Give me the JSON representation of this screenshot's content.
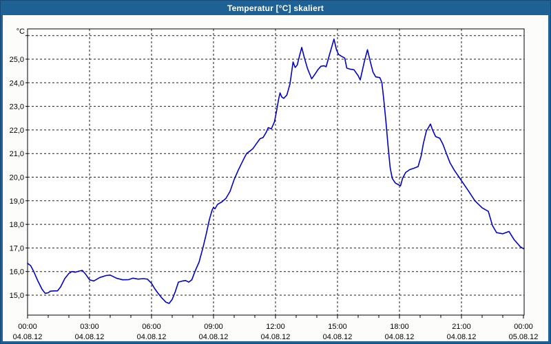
{
  "window": {
    "title": "Temperatur [°C] skaliert",
    "titlebar_color": "#1D6195",
    "border_color": "#17497A",
    "body_color": "#FCFDFB"
  },
  "chart_data": {
    "type": "line",
    "title": "Temperatur [°C] skaliert",
    "y_unit_label": "°C",
    "grid": "dashed",
    "legend": "none",
    "line_color": "#0000C8",
    "grid_color": "#1A1A1A",
    "frame_color": "#000000",
    "plot_bg": "#FFFFFF",
    "xlim_hours": [
      0,
      24
    ],
    "ylim": [
      14.15,
      26.3
    ],
    "y_ticks": [
      {
        "v": 15,
        "label": "15,0"
      },
      {
        "v": 16,
        "label": "16,0"
      },
      {
        "v": 17,
        "label": "17,0"
      },
      {
        "v": 18,
        "label": "18,0"
      },
      {
        "v": 19,
        "label": "19,0"
      },
      {
        "v": 20,
        "label": "20,0"
      },
      {
        "v": 21,
        "label": "21,0"
      },
      {
        "v": 22,
        "label": "22,0"
      },
      {
        "v": 23,
        "label": "23,0"
      },
      {
        "v": 24,
        "label": "24,0"
      },
      {
        "v": 25,
        "label": "25,0"
      },
      {
        "v": 26,
        "label": ""
      }
    ],
    "x_ticks": [
      {
        "h": 0,
        "time": "00:00",
        "date": "04.08.12"
      },
      {
        "h": 3,
        "time": "03:00",
        "date": "04.08.12"
      },
      {
        "h": 6,
        "time": "06:00",
        "date": "04.08.12"
      },
      {
        "h": 9,
        "time": "09:00",
        "date": "04.08.12"
      },
      {
        "h": 12,
        "time": "12:00",
        "date": "04.08.12"
      },
      {
        "h": 15,
        "time": "15:00",
        "date": "04.08.12"
      },
      {
        "h": 18,
        "time": "18:00",
        "date": "04.08.12"
      },
      {
        "h": 21,
        "time": "21:00",
        "date": "04.08.12"
      },
      {
        "h": 24,
        "time": "00:00",
        "date": "05.08.12"
      }
    ],
    "series": [
      {
        "name": "Temperatur",
        "points": [
          [
            0.0,
            16.35
          ],
          [
            0.15,
            16.25
          ],
          [
            0.3,
            16.0
          ],
          [
            0.5,
            15.6
          ],
          [
            0.7,
            15.25
          ],
          [
            0.85,
            15.08
          ],
          [
            1.0,
            15.1
          ],
          [
            1.1,
            15.17
          ],
          [
            1.3,
            15.18
          ],
          [
            1.45,
            15.18
          ],
          [
            1.6,
            15.35
          ],
          [
            1.8,
            15.7
          ],
          [
            2.0,
            15.92
          ],
          [
            2.15,
            16.0
          ],
          [
            2.3,
            15.97
          ],
          [
            2.5,
            16.02
          ],
          [
            2.65,
            16.05
          ],
          [
            2.8,
            15.9
          ],
          [
            3.0,
            15.65
          ],
          [
            3.2,
            15.6
          ],
          [
            3.5,
            15.75
          ],
          [
            3.8,
            15.83
          ],
          [
            4.0,
            15.85
          ],
          [
            4.3,
            15.72
          ],
          [
            4.6,
            15.65
          ],
          [
            4.9,
            15.66
          ],
          [
            5.1,
            15.72
          ],
          [
            5.35,
            15.68
          ],
          [
            5.6,
            15.7
          ],
          [
            5.8,
            15.68
          ],
          [
            6.0,
            15.5
          ],
          [
            6.15,
            15.28
          ],
          [
            6.3,
            15.1
          ],
          [
            6.5,
            14.88
          ],
          [
            6.7,
            14.7
          ],
          [
            6.85,
            14.65
          ],
          [
            7.0,
            14.82
          ],
          [
            7.15,
            15.15
          ],
          [
            7.3,
            15.55
          ],
          [
            7.5,
            15.6
          ],
          [
            7.65,
            15.62
          ],
          [
            7.8,
            15.55
          ],
          [
            7.95,
            15.65
          ],
          [
            8.1,
            16.0
          ],
          [
            8.3,
            16.4
          ],
          [
            8.5,
            17.05
          ],
          [
            8.65,
            17.6
          ],
          [
            8.8,
            18.2
          ],
          [
            8.93,
            18.6
          ],
          [
            9.0,
            18.72
          ],
          [
            9.07,
            18.66
          ],
          [
            9.2,
            18.85
          ],
          [
            9.4,
            18.95
          ],
          [
            9.6,
            19.1
          ],
          [
            9.8,
            19.4
          ],
          [
            10.0,
            19.9
          ],
          [
            10.2,
            20.3
          ],
          [
            10.45,
            20.75
          ],
          [
            10.6,
            21.0
          ],
          [
            10.75,
            21.1
          ],
          [
            10.9,
            21.2
          ],
          [
            11.1,
            21.45
          ],
          [
            11.25,
            21.63
          ],
          [
            11.4,
            21.68
          ],
          [
            11.55,
            21.9
          ],
          [
            11.65,
            22.1
          ],
          [
            11.8,
            22.05
          ],
          [
            11.95,
            22.35
          ],
          [
            12.05,
            22.8
          ],
          [
            12.15,
            23.3
          ],
          [
            12.22,
            23.57
          ],
          [
            12.3,
            23.4
          ],
          [
            12.4,
            23.34
          ],
          [
            12.55,
            23.48
          ],
          [
            12.7,
            23.95
          ],
          [
            12.85,
            24.88
          ],
          [
            12.95,
            24.65
          ],
          [
            13.05,
            24.75
          ],
          [
            13.15,
            25.1
          ],
          [
            13.27,
            25.5
          ],
          [
            13.4,
            25.05
          ],
          [
            13.55,
            24.6
          ],
          [
            13.75,
            24.17
          ],
          [
            13.9,
            24.35
          ],
          [
            14.05,
            24.55
          ],
          [
            14.2,
            24.7
          ],
          [
            14.35,
            24.72
          ],
          [
            14.45,
            24.68
          ],
          [
            14.6,
            25.15
          ],
          [
            14.83,
            25.85
          ],
          [
            14.95,
            25.4
          ],
          [
            15.05,
            25.2
          ],
          [
            15.2,
            25.12
          ],
          [
            15.35,
            25.05
          ],
          [
            15.45,
            24.62
          ],
          [
            15.6,
            24.58
          ],
          [
            15.8,
            24.55
          ],
          [
            16.0,
            24.3
          ],
          [
            16.1,
            24.12
          ],
          [
            16.3,
            24.9
          ],
          [
            16.45,
            25.4
          ],
          [
            16.6,
            24.85
          ],
          [
            16.72,
            24.45
          ],
          [
            16.85,
            24.25
          ],
          [
            17.05,
            24.22
          ],
          [
            17.15,
            24.0
          ],
          [
            17.25,
            23.2
          ],
          [
            17.35,
            22.3
          ],
          [
            17.45,
            21.3
          ],
          [
            17.55,
            20.4
          ],
          [
            17.65,
            19.95
          ],
          [
            17.8,
            19.75
          ],
          [
            17.95,
            19.68
          ],
          [
            18.05,
            19.63
          ],
          [
            18.15,
            19.95
          ],
          [
            18.3,
            20.2
          ],
          [
            18.5,
            20.32
          ],
          [
            18.7,
            20.38
          ],
          [
            18.9,
            20.45
          ],
          [
            19.05,
            20.9
          ],
          [
            19.15,
            21.4
          ],
          [
            19.3,
            21.95
          ],
          [
            19.5,
            22.25
          ],
          [
            19.6,
            22.0
          ],
          [
            19.75,
            21.72
          ],
          [
            19.95,
            21.65
          ],
          [
            20.1,
            21.4
          ],
          [
            20.25,
            21.05
          ],
          [
            20.45,
            20.6
          ],
          [
            20.65,
            20.3
          ],
          [
            21.0,
            19.85
          ],
          [
            21.35,
            19.4
          ],
          [
            21.65,
            19.0
          ],
          [
            22.0,
            18.7
          ],
          [
            22.3,
            18.55
          ],
          [
            22.5,
            17.95
          ],
          [
            22.7,
            17.65
          ],
          [
            23.0,
            17.6
          ],
          [
            23.3,
            17.7
          ],
          [
            23.55,
            17.35
          ],
          [
            23.85,
            17.05
          ],
          [
            24.0,
            16.97
          ]
        ]
      }
    ]
  }
}
